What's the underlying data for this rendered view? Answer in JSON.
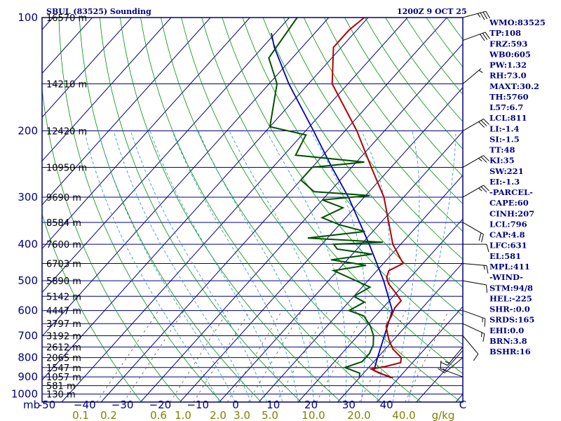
{
  "chart_data": {
    "type": "skew-t sounding",
    "title": "SBUL (83525) Sounding",
    "valid_time": "1200Z  9 OCT 25",
    "y_axis_unit": "mb",
    "mixing_ratio_unit": "g/kg",
    "pressure_ticks": [
      100,
      200,
      300,
      400,
      500,
      600,
      700,
      800,
      900,
      1000
    ],
    "temperature_ticks": [
      -50,
      -40,
      -30,
      -20,
      -10,
      0,
      10,
      20,
      30,
      40
    ],
    "temperature_tick_labels": [
      "-50",
      "−40",
      "−30",
      "−20",
      "−10",
      "0",
      "10",
      "20",
      "30",
      "40"
    ],
    "temperature_end_label": "C",
    "mixing_ratio_ticks": [
      "0.1",
      "0.2",
      "0.6",
      "1.0",
      "2.0",
      "3.0",
      "5.0",
      "10.0",
      "20.0",
      "40.0"
    ],
    "height_labels": [
      {
        "p": 100,
        "label": "16570 m"
      },
      {
        "p": 150,
        "label": "14210 m"
      },
      {
        "p": 200,
        "label": "12420 m"
      },
      {
        "p": 250,
        "label": "10950 m"
      },
      {
        "p": 300,
        "label": "9690 m"
      },
      {
        "p": 350,
        "label": "8584 m"
      },
      {
        "p": 400,
        "label": "7600 m"
      },
      {
        "p": 450,
        "label": "6703 m"
      },
      {
        "p": 500,
        "label": "5890 m"
      },
      {
        "p": 550,
        "label": "5142 m"
      },
      {
        "p": 600,
        "label": "4447 m"
      },
      {
        "p": 650,
        "label": "3797 m"
      },
      {
        "p": 700,
        "label": "3192 m"
      },
      {
        "p": 750,
        "label": "2612 m"
      },
      {
        "p": 800,
        "label": "2065 m"
      },
      {
        "p": 850,
        "label": "1547 m"
      },
      {
        "p": 900,
        "label": "1057 m"
      },
      {
        "p": 950,
        "label": "581 m"
      },
      {
        "p": 1000,
        "label": "130 m"
      }
    ],
    "temperature_profile_C": [
      {
        "p": 905,
        "t": 28.5
      },
      {
        "p": 880,
        "t": 24
      },
      {
        "p": 858,
        "t": 21
      },
      {
        "p": 845,
        "t": 24
      },
      {
        "p": 825,
        "t": 27
      },
      {
        "p": 800,
        "t": 26
      },
      {
        "p": 760,
        "t": 22
      },
      {
        "p": 720,
        "t": 19
      },
      {
        "p": 690,
        "t": 17
      },
      {
        "p": 660,
        "t": 15
      },
      {
        "p": 620,
        "t": 14
      },
      {
        "p": 590,
        "t": 13
      },
      {
        "p": 565,
        "t": 13
      },
      {
        "p": 540,
        "t": 10
      },
      {
        "p": 510,
        "t": 6
      },
      {
        "p": 490,
        "t": 4
      },
      {
        "p": 470,
        "t": 3
      },
      {
        "p": 450,
        "t": 5
      },
      {
        "p": 400,
        "t": -2
      },
      {
        "p": 300,
        "t": -15
      },
      {
        "p": 250,
        "t": -25
      },
      {
        "p": 200,
        "t": -37
      },
      {
        "p": 150,
        "t": -54
      },
      {
        "p": 120,
        "t": -62
      },
      {
        "p": 108,
        "t": -62
      },
      {
        "p": 100,
        "t": -61
      }
    ],
    "dewpoint_profile_C": [
      {
        "p": 905,
        "t": 20
      },
      {
        "p": 880,
        "t": 19
      },
      {
        "p": 850,
        "t": 14
      },
      {
        "p": 820,
        "t": 17
      },
      {
        "p": 780,
        "t": 17
      },
      {
        "p": 740,
        "t": 16
      },
      {
        "p": 700,
        "t": 14
      },
      {
        "p": 660,
        "t": 11
      },
      {
        "p": 620,
        "t": 7
      },
      {
        "p": 600,
        "t": 2
      },
      {
        "p": 570,
        "t": 4
      },
      {
        "p": 550,
        "t": 0
      },
      {
        "p": 520,
        "t": 2
      },
      {
        "p": 500,
        "t": -3
      },
      {
        "p": 470,
        "t": -11
      },
      {
        "p": 455,
        "t": -4
      },
      {
        "p": 440,
        "t": -14
      },
      {
        "p": 425,
        "t": -5
      },
      {
        "p": 412,
        "t": -15
      },
      {
        "p": 400,
        "t": -17
      },
      {
        "p": 395,
        "t": -5
      },
      {
        "p": 385,
        "t": -25
      },
      {
        "p": 370,
        "t": -12
      },
      {
        "p": 355,
        "t": -20
      },
      {
        "p": 340,
        "t": -26
      },
      {
        "p": 320,
        "t": -23
      },
      {
        "p": 305,
        "t": -30
      },
      {
        "p": 297,
        "t": -19
      },
      {
        "p": 290,
        "t": -34
      },
      {
        "p": 270,
        "t": -40
      },
      {
        "p": 250,
        "t": -40
      },
      {
        "p": 242,
        "t": -28
      },
      {
        "p": 232,
        "t": -47
      },
      {
        "p": 205,
        "t": -49
      },
      {
        "p": 195,
        "t": -60
      },
      {
        "p": 150,
        "t": -68
      },
      {
        "p": 128,
        "t": -76
      },
      {
        "p": 100,
        "t": -78
      }
    ],
    "parcel_path_C": [
      {
        "p": 905,
        "t": 28
      },
      {
        "p": 865,
        "t": 22
      },
      {
        "p": 800,
        "t": 20
      },
      {
        "p": 600,
        "t": 13
      },
      {
        "p": 500,
        "t": 4
      },
      {
        "p": 400,
        "t": -8
      },
      {
        "p": 300,
        "t": -24
      },
      {
        "p": 250,
        "t": -35
      },
      {
        "p": 200,
        "t": -48
      },
      {
        "p": 150,
        "t": -65
      },
      {
        "p": 120,
        "t": -77
      },
      {
        "p": 110,
        "t": -81
      }
    ],
    "wind_barbs": [
      {
        "p": 100,
        "dir": 75,
        "kt": 35
      },
      {
        "p": 115,
        "dir": 70,
        "kt": 30
      },
      {
        "p": 150,
        "dir": 50,
        "kt": 5
      },
      {
        "p": 200,
        "dir": 60,
        "kt": 30
      },
      {
        "p": 250,
        "dir": 60,
        "kt": 25
      },
      {
        "p": 300,
        "dir": 60,
        "kt": 25
      },
      {
        "p": 350,
        "dir": 120,
        "kt": 20
      },
      {
        "p": 400,
        "dir": 90,
        "kt": 10
      },
      {
        "p": 450,
        "dir": 95,
        "kt": 15
      },
      {
        "p": 500,
        "dir": 100,
        "kt": 10
      },
      {
        "p": 600,
        "dir": 110,
        "kt": 15
      },
      {
        "p": 650,
        "dir": 115,
        "kt": 15
      },
      {
        "p": 700,
        "dir": 140,
        "kt": 10
      },
      {
        "p": 750,
        "dir": 220,
        "kt": 15
      },
      {
        "p": 800,
        "dir": 230,
        "kt": 15
      },
      {
        "p": 900,
        "dir": 290,
        "kt": 10
      }
    ],
    "indices": [
      "WMO:83525",
      "TP:108",
      "FRZ:593",
      "WB0:605",
      "PW:1.32",
      "RH:73.0",
      "MAXT:30.2",
      "TH:5760",
      "L57:6.7",
      "LCL:811",
      "LI:-1.4",
      "SI:-1.5",
      "TT:48",
      "KI:35",
      "SW:221",
      "EI:-1.3",
      "-PARCEL-",
      "CAPE:60",
      "CINH:207",
      "LCL:796",
      "CAP:4.8",
      "LFC:631",
      "EL:581",
      "MPL:411",
      "-WIND-",
      "STM:94/8",
      "HEL:-225",
      "SHR-:0.0",
      "SRDS:165",
      "EHI:0.0",
      "BRN:3.8",
      "BSHR:16"
    ]
  },
  "colors": {
    "frame": "#000080",
    "isobar": "#000080",
    "isotherm": "#000080",
    "dry_adiabat": "#009000",
    "moist_adiabat": "#2090c0",
    "mixing_ratio": "#555555",
    "temperature": "#b00000",
    "dewpoint": "#005000",
    "parcel": "#0000b0",
    "barb": "#000000"
  }
}
